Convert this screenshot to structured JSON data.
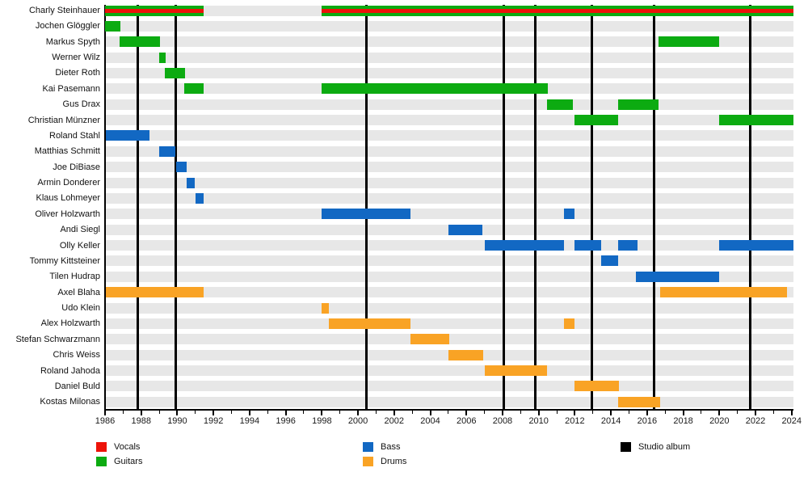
{
  "chart_data": {
    "type": "timeline",
    "description": "Band members timeline (Gantt-style) with instrument color coding and studio album release markers",
    "x_axis": {
      "min": 1986,
      "max": 2024.1,
      "labeled_ticks": [
        "1986",
        "1988",
        "1990",
        "1992",
        "1994",
        "1996",
        "1998",
        "2000",
        "2002",
        "2004",
        "2006",
        "2008",
        "2010",
        "2012",
        "2014",
        "2016",
        "2018",
        "2020",
        "2022",
        "2024"
      ],
      "minor_tick_every_years": 1,
      "grid": false
    },
    "colors": {
      "vocals": "#ed1309",
      "guitars": "#0cab11",
      "bass": "#1268c3",
      "drums": "#f9a325",
      "album": "#000000",
      "row_track": "#e7e7e7",
      "background": "#ffffff"
    },
    "studio_albums_years": [
      1987.8,
      1989.9,
      2000.45,
      2008.05,
      2009.8,
      2012.95,
      2016.4,
      2021.7
    ],
    "members": [
      {
        "name": "Charly Steinhauer",
        "roles": [
          "vocals",
          "guitars"
        ],
        "periods": [
          [
            1986.0,
            1991.45
          ],
          [
            1998.0,
            2024.1
          ]
        ]
      },
      {
        "name": "Jochen Glöggler",
        "roles": [
          "guitars"
        ],
        "periods": [
          [
            1986.0,
            1986.85
          ]
        ]
      },
      {
        "name": "Markus Spyth",
        "roles": [
          "guitars"
        ],
        "periods": [
          [
            1986.8,
            1989.05
          ],
          [
            2016.65,
            2020.0
          ]
        ]
      },
      {
        "name": "Werner Wilz",
        "roles": [
          "guitars"
        ],
        "periods": [
          [
            1989.0,
            1989.35
          ]
        ]
      },
      {
        "name": "Dieter Roth",
        "roles": [
          "guitars"
        ],
        "periods": [
          [
            1989.3,
            1990.45
          ]
        ]
      },
      {
        "name": "Kai Pasemann",
        "roles": [
          "guitars"
        ],
        "periods": [
          [
            1990.4,
            1991.45
          ],
          [
            1998.0,
            2010.5
          ]
        ]
      },
      {
        "name": "Gus Drax",
        "roles": [
          "guitars"
        ],
        "periods": [
          [
            2010.45,
            2011.9
          ],
          [
            2014.4,
            2016.65
          ]
        ]
      },
      {
        "name": "Christian Münzner",
        "roles": [
          "guitars"
        ],
        "periods": [
          [
            2012.0,
            2014.4
          ],
          [
            2020.0,
            2024.1
          ]
        ]
      },
      {
        "name": "Roland Stahl",
        "roles": [
          "bass"
        ],
        "periods": [
          [
            1986.05,
            1988.45
          ]
        ]
      },
      {
        "name": "Matthias Schmitt",
        "roles": [
          "bass"
        ],
        "periods": [
          [
            1989.0,
            1989.9
          ]
        ]
      },
      {
        "name": "Joe DiBiase",
        "roles": [
          "bass"
        ],
        "periods": [
          [
            1989.95,
            1990.5
          ]
        ]
      },
      {
        "name": "Armin Donderer",
        "roles": [
          "bass"
        ],
        "periods": [
          [
            1990.5,
            1990.95
          ]
        ]
      },
      {
        "name": "Klaus Lohmeyer",
        "roles": [
          "bass"
        ],
        "periods": [
          [
            1991.0,
            1991.45
          ]
        ]
      },
      {
        "name": "Oliver Holzwarth",
        "roles": [
          "bass"
        ],
        "periods": [
          [
            1998.0,
            2002.9
          ],
          [
            2011.4,
            2012.0
          ]
        ]
      },
      {
        "name": "Andi Siegl",
        "roles": [
          "bass"
        ],
        "periods": [
          [
            2005.0,
            2006.9
          ]
        ]
      },
      {
        "name": "Olly Keller",
        "roles": [
          "bass"
        ],
        "periods": [
          [
            2007.0,
            2011.4
          ],
          [
            2012.0,
            2013.45
          ],
          [
            2014.4,
            2015.45
          ],
          [
            2020.0,
            2024.1
          ]
        ]
      },
      {
        "name": "Tommy Kittsteiner",
        "roles": [
          "bass"
        ],
        "periods": [
          [
            2013.45,
            2014.4
          ]
        ]
      },
      {
        "name": "Tilen Hudrap",
        "roles": [
          "bass"
        ],
        "periods": [
          [
            2015.4,
            2020.0
          ]
        ]
      },
      {
        "name": "Axel Blaha",
        "roles": [
          "drums"
        ],
        "periods": [
          [
            1986.05,
            1991.45
          ],
          [
            2016.7,
            2023.75
          ]
        ]
      },
      {
        "name": "Udo Klein",
        "roles": [
          "drums"
        ],
        "periods": [
          [
            1998.0,
            1998.4
          ]
        ]
      },
      {
        "name": "Alex Holzwarth",
        "roles": [
          "drums"
        ],
        "periods": [
          [
            1998.4,
            2002.9
          ],
          [
            2011.4,
            2012.0
          ]
        ]
      },
      {
        "name": "Stefan Schwarzmann",
        "roles": [
          "drums"
        ],
        "periods": [
          [
            2002.9,
            2005.05
          ]
        ]
      },
      {
        "name": "Chris Weiss",
        "roles": [
          "drums"
        ],
        "periods": [
          [
            2005.0,
            2006.95
          ]
        ]
      },
      {
        "name": "Roland Jahoda",
        "roles": [
          "drums"
        ],
        "periods": [
          [
            2007.0,
            2010.45
          ]
        ]
      },
      {
        "name": "Daniel Buld",
        "roles": [
          "drums"
        ],
        "periods": [
          [
            2012.0,
            2014.45
          ]
        ]
      },
      {
        "name": "Kostas Milonas",
        "roles": [
          "drums"
        ],
        "periods": [
          [
            2014.4,
            2016.7
          ]
        ]
      }
    ],
    "legend": {
      "position": "bottom",
      "columns": [
        [
          {
            "label": "Vocals",
            "role": "vocals"
          },
          {
            "label": "Guitars",
            "role": "guitars"
          }
        ],
        [
          {
            "label": "Bass",
            "role": "bass"
          },
          {
            "label": "Drums",
            "role": "drums"
          }
        ],
        [
          {
            "label": "Studio album",
            "role": "album"
          }
        ]
      ]
    }
  }
}
